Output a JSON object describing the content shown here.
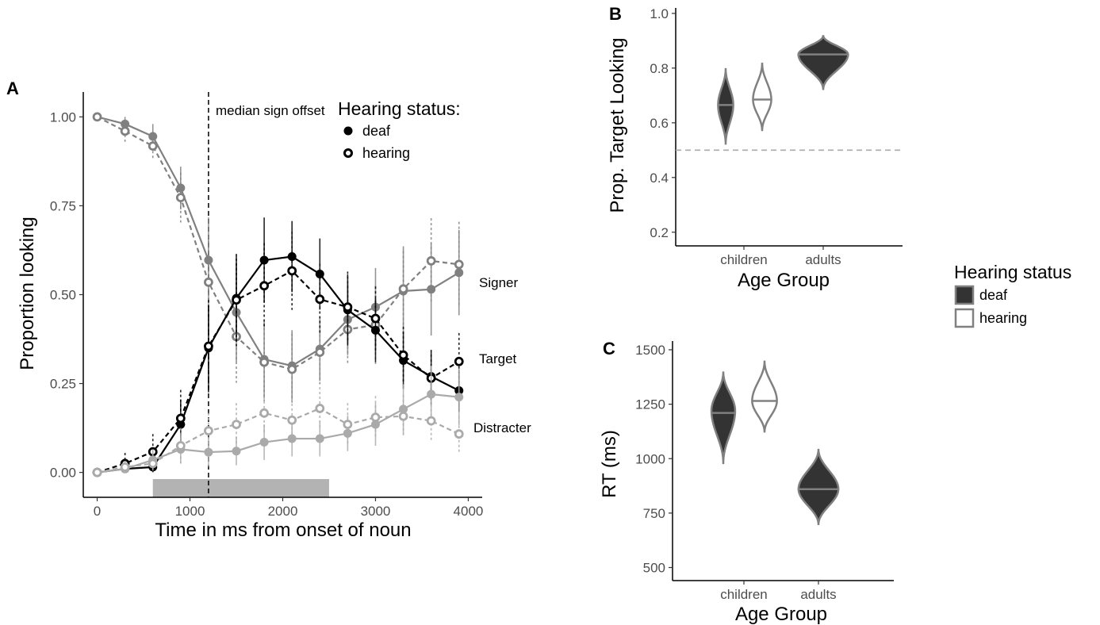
{
  "chart_data": [
    {
      "panel": "A",
      "type": "line",
      "xlabel": "Time in ms from onset of noun",
      "ylabel": "Proportion looking",
      "xlim": [
        -150,
        4150
      ],
      "ylim": [
        -0.07,
        1.07
      ],
      "x_ticks": [
        0,
        1000,
        2000,
        3000,
        4000
      ],
      "x_tick_labels": [
        "0",
        "1000",
        "2000",
        "3000",
        "4000"
      ],
      "y_ticks": [
        0,
        0.25,
        0.5,
        0.75,
        1.0
      ],
      "y_tick_labels": [
        "0.00",
        "0.25",
        "0.50",
        "0.75",
        "1.00"
      ],
      "grid": false,
      "x": [
        0,
        300,
        600,
        900,
        1200,
        1500,
        1800,
        2100,
        2400,
        2700,
        3000,
        3300,
        3600,
        3900
      ],
      "legend": {
        "title": "Hearing status:",
        "placement": "top-right",
        "entries": [
          {
            "label": "deaf",
            "marker": "filled"
          },
          {
            "label": "hearing",
            "marker": "open"
          }
        ]
      },
      "annotations": {
        "vline": {
          "x": 1200,
          "label": "median sign offset"
        },
        "window_bar": {
          "x_start": 600,
          "x_end": 2500
        }
      },
      "region_labels": [
        "Signer",
        "Target",
        "Distracter"
      ],
      "colors": {
        "signer": "#808080",
        "target": "#000000",
        "distracter": "#aaaaaa"
      },
      "series": [
        {
          "group": "signer",
          "hearing": "deaf",
          "values": [
            1.0,
            0.98,
            0.945,
            0.8,
            0.597,
            0.45,
            0.318,
            0.3,
            0.347,
            0.43,
            0.465,
            0.51,
            0.515,
            0.562
          ],
          "err": [
            0.01,
            0.02,
            0.035,
            0.06,
            0.12,
            0.14,
            0.11,
            0.1,
            0.09,
            0.1,
            0.11,
            0.12,
            0.13,
            0.12
          ]
        },
        {
          "group": "signer",
          "hearing": "hearing",
          "values": [
            1.0,
            0.96,
            0.918,
            0.773,
            0.535,
            0.382,
            0.31,
            0.29,
            0.338,
            0.402,
            0.415,
            0.516,
            0.595,
            0.585
          ],
          "err": [
            0.01,
            0.03,
            0.04,
            0.07,
            0.13,
            0.13,
            0.11,
            0.1,
            0.09,
            0.1,
            0.11,
            0.12,
            0.12,
            0.12
          ]
        },
        {
          "group": "target",
          "hearing": "deaf",
          "values": [
            0.0,
            0.01,
            0.015,
            0.135,
            0.35,
            0.49,
            0.597,
            0.607,
            0.558,
            0.457,
            0.4,
            0.315,
            0.27,
            0.23
          ],
          "err": [
            0.005,
            0.02,
            0.04,
            0.07,
            0.12,
            0.12,
            0.12,
            0.1,
            0.1,
            0.1,
            0.09,
            0.08,
            0.07,
            0.06
          ]
        },
        {
          "group": "target",
          "hearing": "hearing",
          "values": [
            0.0,
            0.025,
            0.058,
            0.152,
            0.355,
            0.485,
            0.525,
            0.567,
            0.487,
            0.465,
            0.433,
            0.33,
            0.265,
            0.312
          ],
          "err": [
            0.005,
            0.03,
            0.05,
            0.08,
            0.13,
            0.13,
            0.12,
            0.11,
            0.1,
            0.1,
            0.09,
            0.08,
            0.08,
            0.08
          ]
        },
        {
          "group": "distracter",
          "hearing": "deaf",
          "values": [
            0.0,
            0.01,
            0.035,
            0.065,
            0.057,
            0.06,
            0.085,
            0.095,
            0.095,
            0.11,
            0.135,
            0.178,
            0.22,
            0.212
          ],
          "err": [
            0.005,
            0.015,
            0.03,
            0.04,
            0.04,
            0.04,
            0.05,
            0.05,
            0.05,
            0.05,
            0.06,
            0.07,
            0.08,
            0.08
          ]
        },
        {
          "group": "distracter",
          "hearing": "hearing",
          "values": [
            0.0,
            0.015,
            0.025,
            0.075,
            0.117,
            0.135,
            0.167,
            0.147,
            0.18,
            0.135,
            0.155,
            0.158,
            0.145,
            0.108
          ],
          "err": [
            0.005,
            0.015,
            0.03,
            0.05,
            0.05,
            0.06,
            0.06,
            0.06,
            0.06,
            0.06,
            0.06,
            0.06,
            0.06,
            0.05
          ]
        }
      ]
    },
    {
      "panel": "B",
      "type": "violin",
      "xlabel": "Age Group",
      "ylabel": "Prop. Target Looking",
      "categories": [
        "children",
        "adults"
      ],
      "ylim": [
        0.15,
        1.02
      ],
      "y_ticks": [
        0.2,
        0.4,
        0.6,
        0.8,
        1.0
      ],
      "y_tick_labels": [
        "0.2",
        "0.4",
        "0.6",
        "0.8",
        "1.0"
      ],
      "hline": 0.5,
      "violins": [
        {
          "category": "children",
          "hearing": "deaf",
          "min": 0.52,
          "max": 0.8,
          "median": 0.665,
          "width": 0.3
        },
        {
          "category": "children",
          "hearing": "hearing",
          "min": 0.57,
          "max": 0.82,
          "median": 0.685,
          "width": 0.36
        },
        {
          "category": "adults",
          "hearing": "deaf",
          "min": 0.72,
          "max": 0.92,
          "median": 0.85,
          "width": 0.98,
          "mode": 0.85
        }
      ]
    },
    {
      "panel": "C",
      "type": "violin",
      "xlabel": "Age Group",
      "ylabel": "RT (ms)",
      "categories": [
        "children",
        "adults"
      ],
      "ylim": [
        440,
        1540
      ],
      "y_ticks": [
        500,
        750,
        1000,
        1250,
        1500
      ],
      "y_tick_labels": [
        "500",
        "750",
        "1000",
        "1250",
        "1500"
      ],
      "violins": [
        {
          "category": "children",
          "hearing": "deaf",
          "min": 975,
          "max": 1400,
          "median": 1210,
          "width": 0.44,
          "mode": 1220
        },
        {
          "category": "children",
          "hearing": "hearing",
          "min": 1120,
          "max": 1450,
          "median": 1265,
          "width": 0.46,
          "mode": 1265
        },
        {
          "category": "adults",
          "hearing": "deaf",
          "min": 695,
          "max": 1045,
          "median": 860,
          "width": 0.74,
          "mode": 860
        }
      ]
    }
  ],
  "shared_legend": {
    "title": "Hearing status",
    "entries": [
      "deaf",
      "hearing"
    ]
  }
}
